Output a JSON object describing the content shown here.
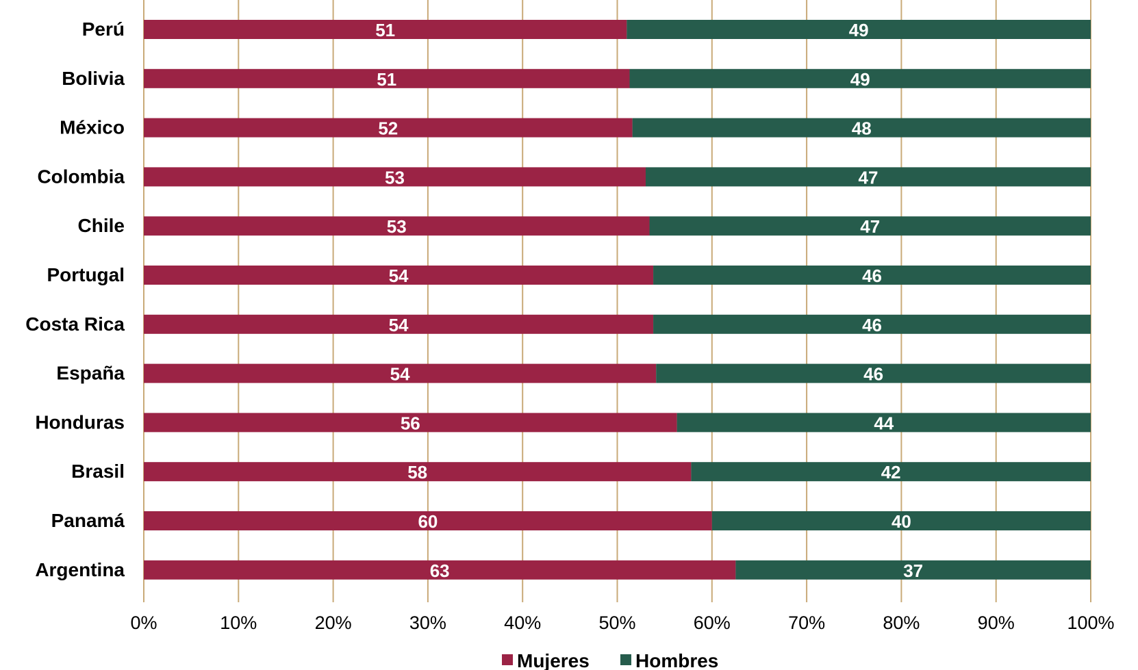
{
  "chart_data": {
    "type": "bar",
    "orientation": "horizontal",
    "stacked": "percent",
    "categories": [
      "Perú",
      "Bolivia",
      "México",
      "Colombia",
      "Chile",
      "Portugal",
      "Costa Rica",
      "España",
      "Honduras",
      "Brasil",
      "Panamá",
      "Argentina"
    ],
    "series": [
      {
        "name": "Mujeres",
        "color": "#9b2345",
        "values": [
          51,
          51,
          52,
          53,
          53,
          54,
          54,
          54,
          56,
          58,
          60,
          63
        ],
        "exact_values": [
          51.0,
          51.3,
          51.6,
          53.0,
          53.4,
          53.8,
          53.8,
          54.1,
          56.3,
          57.8,
          60.0,
          62.5
        ]
      },
      {
        "name": "Hombres",
        "color": "#265c4c",
        "values": [
          49,
          49,
          48,
          47,
          47,
          46,
          46,
          46,
          44,
          42,
          40,
          37
        ]
      }
    ],
    "xlim": [
      0,
      100
    ],
    "x_ticks": [
      "0%",
      "10%",
      "20%",
      "30%",
      "40%",
      "50%",
      "60%",
      "70%",
      "80%",
      "90%",
      "100%"
    ],
    "grid": "vertical",
    "grid_color": "#c9aa78",
    "legend": "bottom-center",
    "title": "",
    "xlabel": "",
    "ylabel": ""
  }
}
